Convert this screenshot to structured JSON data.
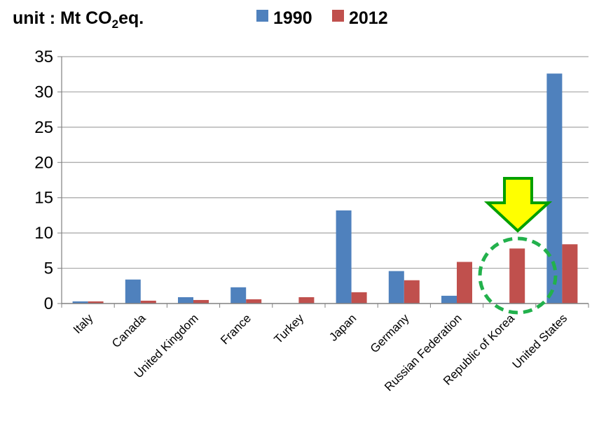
{
  "chart_data": {
    "type": "bar",
    "title": "",
    "unit_label": {
      "prefix": "unit : Mt CO",
      "subscript": "2",
      "suffix": "eq."
    },
    "xlabel": "",
    "ylabel": "",
    "categories": [
      "Italy",
      "Canada",
      "United Kingdom",
      "France",
      "Turkey",
      "Japan",
      "Germany",
      "Russian Federation",
      "Republic of Korea",
      "United States"
    ],
    "series": [
      {
        "name": "1990",
        "color": "#4f81bd",
        "values": [
          0.3,
          3.4,
          0.9,
          2.3,
          0.0,
          13.2,
          4.6,
          1.1,
          0.1,
          32.6
        ]
      },
      {
        "name": "2012",
        "color": "#c0504d",
        "values": [
          0.3,
          0.4,
          0.5,
          0.6,
          0.9,
          1.6,
          3.3,
          5.9,
          7.8,
          8.4
        ]
      }
    ],
    "ylim": [
      0,
      35
    ],
    "yticks": [
      0,
      5,
      10,
      15,
      20,
      25,
      30,
      35
    ],
    "grid": true,
    "legend_position": "top",
    "annotation": {
      "type": "arrow-and-dashed-circle",
      "target": "Republic of Korea",
      "arrow_color": "#ffff00",
      "arrow_outline": "#00a000",
      "circle_color": "#22b14c"
    }
  }
}
